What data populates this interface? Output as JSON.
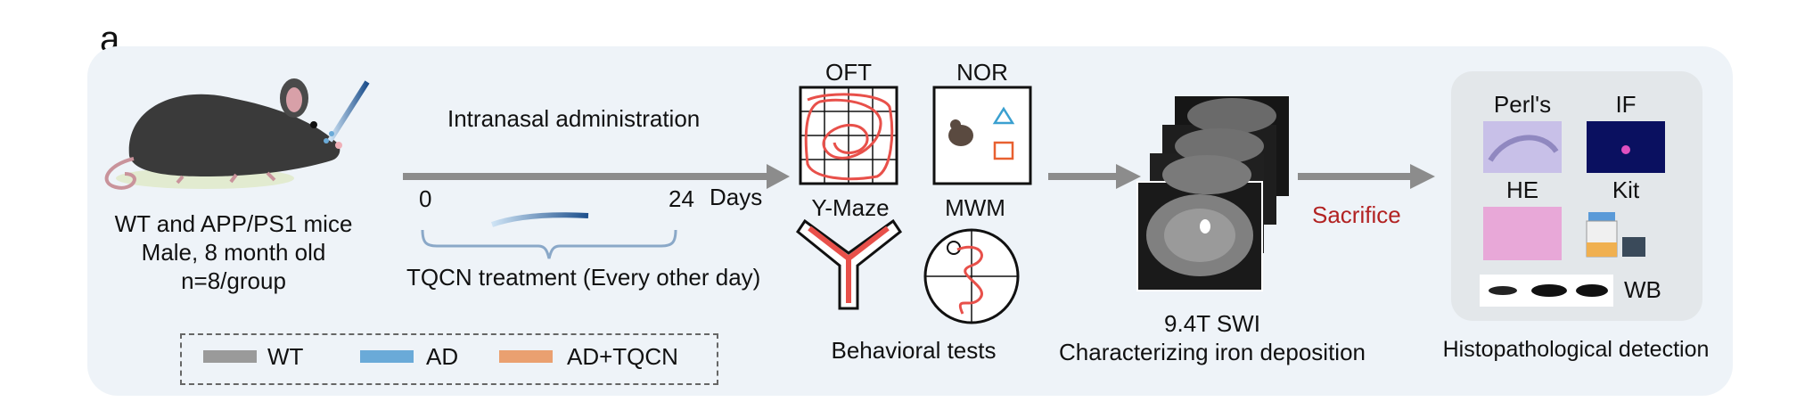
{
  "panel_label": "a",
  "subjects": {
    "line1": "WT and APP/PS1 mice",
    "line2": "Male, 8 month old",
    "line3": "n=8/group"
  },
  "timeline": {
    "route_label": "Intranasal administration",
    "start_tick": "0",
    "end_tick": "24",
    "unit": "Days",
    "treatment_label": "TQCN treatment (Every other day)"
  },
  "legend": {
    "items": [
      {
        "label": "WT",
        "color": "#9a9a9a"
      },
      {
        "label": "AD",
        "color": "#6aaad8"
      },
      {
        "label": "AD+TQCN",
        "color": "#eaa070"
      }
    ]
  },
  "behavior": {
    "tests": [
      "OFT",
      "NOR",
      "Y-Maze",
      "MWM"
    ],
    "caption": "Behavioral tests"
  },
  "mri": {
    "line1": "9.4T SWI",
    "line2": "Characterizing iron deposition"
  },
  "sacrifice_label": "Sacrifice",
  "histology": {
    "items": [
      "Perl's",
      "IF",
      "HE",
      "Kit"
    ],
    "wb_label": "WB",
    "caption": "Histopathological detection"
  },
  "colors": {
    "arrow": "#8c8c8c",
    "trace": "#e8504a",
    "sacrifice": "#b22222",
    "nor_triangle": "#3aa0d0",
    "nor_square": "#e86030"
  }
}
